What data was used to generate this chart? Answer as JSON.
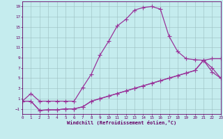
{
  "xlabel": "Windchill (Refroidissement éolien,°C)",
  "background_color": "#c5ecee",
  "grid_color": "#9bbfc0",
  "line_color": "#993399",
  "xlim": [
    0,
    23
  ],
  "ylim": [
    -2,
    20
  ],
  "xticks": [
    0,
    1,
    2,
    3,
    4,
    5,
    6,
    7,
    8,
    9,
    10,
    11,
    12,
    13,
    14,
    15,
    16,
    17,
    18,
    19,
    20,
    21,
    22,
    23
  ],
  "yticks": [
    -1,
    1,
    3,
    5,
    7,
    9,
    11,
    13,
    15,
    17,
    19
  ],
  "line1_x": [
    0,
    1,
    2,
    3,
    4,
    5,
    6,
    7,
    8,
    9,
    10,
    11,
    12,
    13,
    14,
    15,
    16,
    17,
    18,
    19,
    20,
    21,
    22,
    23
  ],
  "line1_y": [
    0.5,
    2.0,
    0.5,
    0.5,
    0.5,
    0.5,
    0.5,
    3.2,
    5.8,
    9.5,
    12.2,
    15.2,
    16.5,
    18.3,
    18.8,
    19.0,
    18.5,
    13.2,
    10.2,
    8.8,
    8.6,
    8.5,
    6.2,
    5.0
  ],
  "line2_x": [
    0,
    1,
    2,
    3,
    4,
    5,
    6,
    7,
    8,
    9,
    10,
    11,
    12,
    13,
    14,
    15,
    16,
    17,
    18,
    19,
    20,
    21,
    22,
    23
  ],
  "line2_y": [
    0.5,
    0.5,
    -1.3,
    -1.2,
    -1.2,
    -1.0,
    -1.0,
    -0.6,
    0.5,
    1.0,
    1.5,
    2.0,
    2.5,
    3.0,
    3.5,
    4.0,
    4.5,
    5.0,
    5.5,
    6.0,
    6.5,
    8.5,
    8.8,
    8.8
  ],
  "line3_x": [
    0,
    1,
    2,
    3,
    4,
    5,
    6,
    7,
    8,
    9,
    10,
    11,
    12,
    13,
    14,
    15,
    16,
    17,
    18,
    19,
    20,
    21,
    22,
    23
  ],
  "line3_y": [
    0.5,
    0.5,
    -1.3,
    -1.2,
    -1.2,
    -1.0,
    -1.0,
    -0.6,
    0.5,
    1.0,
    1.5,
    2.0,
    2.5,
    3.0,
    3.5,
    4.0,
    4.5,
    5.0,
    5.5,
    6.0,
    6.5,
    8.5,
    7.0,
    5.0
  ],
  "linewidth": 0.9,
  "markersize": 3.0
}
